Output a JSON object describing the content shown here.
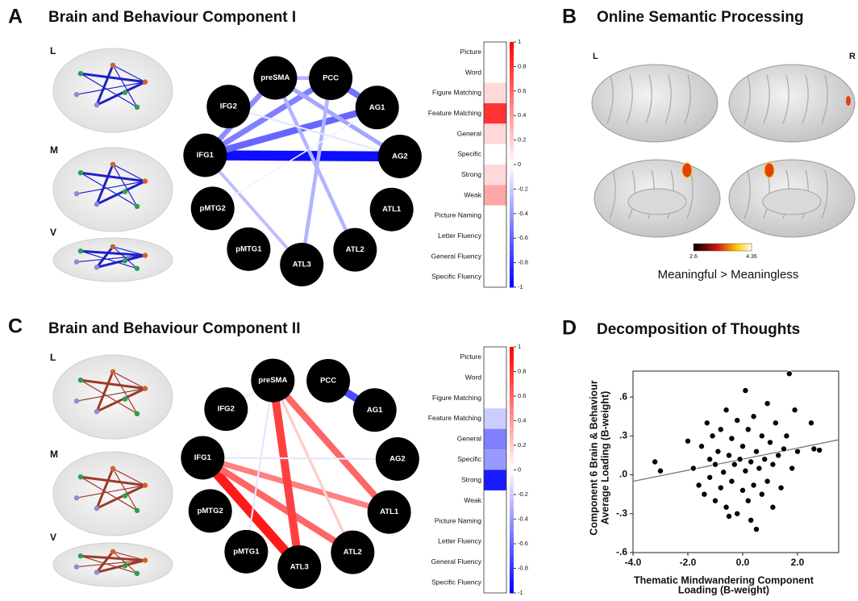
{
  "panel_a": {
    "letter": "A",
    "title": "Brain and Behaviour Component I",
    "views": [
      "L",
      "M",
      "V"
    ]
  },
  "panel_b": {
    "letter": "B",
    "title": "Online Semantic Processing",
    "hemispheres": [
      "L",
      "R"
    ],
    "colorbar_ticks": [
      2.6,
      4.36
    ],
    "caption": "Meaningful > Meaningless"
  },
  "panel_c": {
    "letter": "C",
    "title": "Brain and Behaviour Component II",
    "views": [
      "L",
      "M",
      "V"
    ]
  },
  "panel_d": {
    "letter": "D",
    "title": "Decomposition of Thoughts"
  },
  "network_nodes": [
    "preSMA",
    "PCC",
    "AG1",
    "AG2",
    "ATL1",
    "ATL2",
    "ATL3",
    "pMTG1",
    "pMTG2",
    "IFG1",
    "IFG2"
  ],
  "networks": [
    {
      "edges": [
        {
          "from": "IFG1",
          "to": "AG2",
          "weight": -0.95
        },
        {
          "from": "IFG1",
          "to": "AG1",
          "weight": -0.6
        },
        {
          "from": "IFG1",
          "to": "PCC",
          "weight": -0.5
        },
        {
          "from": "IFG1",
          "to": "preSMA",
          "weight": -0.45
        },
        {
          "from": "preSMA",
          "to": "PCC",
          "weight": -0.3
        },
        {
          "from": "preSMA",
          "to": "AG2",
          "weight": -0.35
        },
        {
          "from": "PCC",
          "to": "AG1",
          "weight": -0.55
        },
        {
          "from": "preSMA",
          "to": "ATL2",
          "weight": -0.3
        },
        {
          "from": "PCC",
          "to": "ATL3",
          "weight": -0.3
        },
        {
          "from": "IFG1",
          "to": "ATL3",
          "weight": -0.25
        },
        {
          "from": "IFG2",
          "to": "AG2",
          "weight": -0.1
        },
        {
          "from": "pMTG2",
          "to": "AG1",
          "weight": -0.05
        }
      ]
    },
    {
      "edges": [
        {
          "from": "IFG1",
          "to": "ATL3",
          "weight": 0.9
        },
        {
          "from": "IFG1",
          "to": "ATL2",
          "weight": 0.6
        },
        {
          "from": "IFG1",
          "to": "ATL1",
          "weight": 0.5
        },
        {
          "from": "preSMA",
          "to": "ATL3",
          "weight": 0.75
        },
        {
          "from": "preSMA",
          "to": "ATL1",
          "weight": 0.6
        },
        {
          "from": "preSMA",
          "to": "ATL2",
          "weight": 0.2
        },
        {
          "from": "PCC",
          "to": "AG1",
          "weight": -0.7
        },
        {
          "from": "IFG2",
          "to": "preSMA",
          "weight": 0.1
        },
        {
          "from": "IFG1",
          "to": "AG2",
          "weight": -0.1
        },
        {
          "from": "preSMA",
          "to": "pMTG1",
          "weight": -0.1
        }
      ]
    }
  ],
  "chart_data": [
    {
      "type": "heatmap",
      "categories": [
        "Picture",
        "Word",
        "Figure Matching",
        "Feature Matching",
        "General",
        "Specific",
        "Strong",
        "Weak",
        "Picture Naming",
        "Letter Fluency",
        "General Fluency",
        "Specific Fluency"
      ],
      "values": [
        0,
        0,
        0.15,
        0.8,
        0.15,
        0,
        0.15,
        0.35,
        0,
        0,
        0,
        0
      ],
      "zlim": [
        -1,
        1
      ],
      "zticks": [
        1,
        0.8,
        0.6,
        0.4,
        0.2,
        0,
        -0.2,
        -0.4,
        -0.6,
        -0.8,
        -1
      ],
      "cmap": [
        "#0000ff",
        "#ffffff",
        "#ff0000"
      ]
    },
    {
      "type": "heatmap",
      "categories": [
        "Picture",
        "Word",
        "Figure Matching",
        "Feature Matching",
        "General",
        "Specific",
        "Strong",
        "Weak",
        "Picture Naming",
        "Letter Fluency",
        "General Fluency",
        "Specific Fluency"
      ],
      "values": [
        0,
        0,
        0,
        -0.2,
        -0.5,
        -0.4,
        -0.9,
        0,
        0,
        0,
        0,
        0
      ],
      "zlim": [
        -1,
        1
      ],
      "zticks": [
        1,
        0.8,
        0.6,
        0.4,
        0.2,
        0,
        -0.2,
        -0.4,
        -0.6,
        -0.8,
        -1
      ],
      "cmap": [
        "#0000ff",
        "#ffffff",
        "#ff0000"
      ]
    },
    {
      "type": "scatter",
      "x": [
        -3.2,
        -3.0,
        -2.0,
        -1.8,
        -1.6,
        -1.5,
        -1.4,
        -1.3,
        -1.2,
        -1.2,
        -1.1,
        -1.0,
        -1.0,
        -0.9,
        -0.8,
        -0.8,
        -0.7,
        -0.6,
        -0.6,
        -0.5,
        -0.4,
        -0.4,
        -0.3,
        -0.2,
        -0.2,
        -0.1,
        0.0,
        0.0,
        0.1,
        0.1,
        0.2,
        0.2,
        0.3,
        0.4,
        0.4,
        0.5,
        0.5,
        0.6,
        0.7,
        0.7,
        0.8,
        0.9,
        0.9,
        1.0,
        1.1,
        1.1,
        1.2,
        1.3,
        1.4,
        1.5,
        1.6,
        1.7,
        1.8,
        1.9,
        2.0,
        2.5,
        2.6,
        2.8,
        -0.5,
        0.3
      ],
      "values": [
        0.1,
        0.03,
        0.26,
        0.05,
        -0.08,
        0.22,
        -0.15,
        0.4,
        0.12,
        -0.02,
        0.3,
        -0.2,
        0.08,
        0.18,
        -0.1,
        0.35,
        0.02,
        0.5,
        -0.25,
        0.15,
        -0.05,
        0.28,
        0.08,
        -0.3,
        0.42,
        0.12,
        -0.12,
        0.22,
        0.65,
        0.03,
        -0.2,
        0.35,
        0.1,
        -0.08,
        0.45,
        0.18,
        -0.42,
        0.05,
        0.3,
        -0.15,
        0.12,
        0.55,
        -0.05,
        0.25,
        -0.25,
        0.08,
        0.4,
        0.15,
        -0.1,
        0.2,
        0.3,
        0.78,
        0.05,
        0.5,
        0.18,
        0.4,
        0.2,
        0.19,
        -0.32,
        -0.35
      ],
      "color": "#000000",
      "trend_line": {
        "x": [
          -4.0,
          3.5
        ],
        "values": [
          -0.05,
          0.27
        ]
      },
      "xlim": [
        -4.0,
        3.5
      ],
      "ylim": [
        -0.6,
        0.8
      ],
      "xticks": [
        {
          "value": -4,
          "label": "-4.0"
        },
        {
          "value": -2,
          "label": "-2.0"
        },
        {
          "value": 0,
          "label": "0.0"
        },
        {
          "value": 2,
          "label": "2.0"
        }
      ],
      "yticks": [
        {
          "value": 0.6,
          "label": ".6"
        },
        {
          "value": 0.3,
          "label": ".3"
        },
        {
          "value": 0,
          "label": ".0"
        },
        {
          "value": -0.3,
          "label": "-.3"
        },
        {
          "value": -0.6,
          "label": "-.6"
        }
      ],
      "xlabel": [
        "Thematic Mindwandering Component",
        "Loading (B-weight)"
      ],
      "ylabel": [
        "Component 6 Brain & Behaviour",
        "Average Loading (B-weight)"
      ]
    }
  ]
}
